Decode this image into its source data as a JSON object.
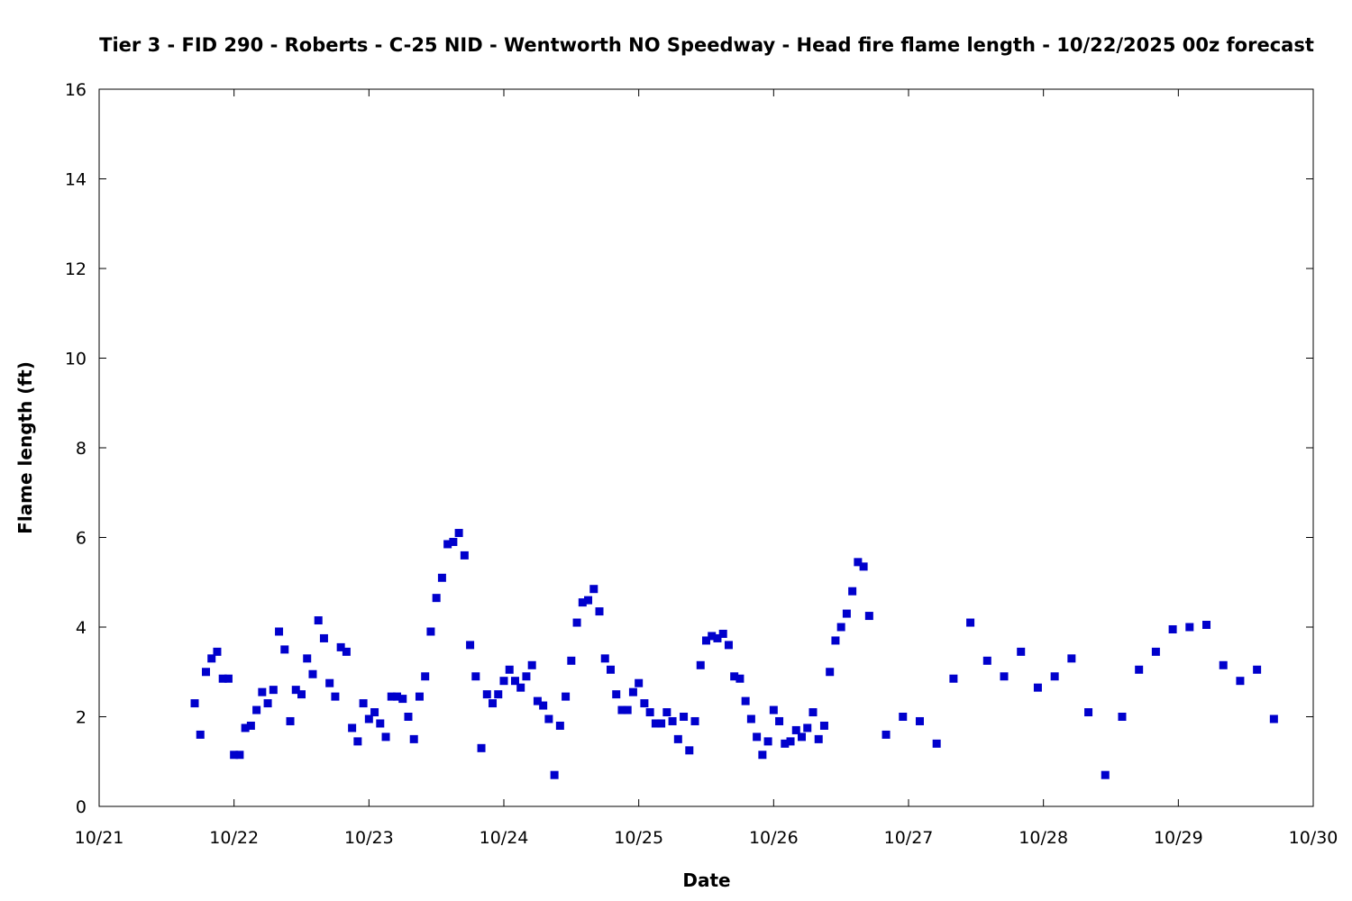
{
  "chart_data": {
    "type": "scatter",
    "title": "Tier 3 - FID 290 - Roberts - C-25 NID - Wentworth NO Speedway - Head fire flame length - 10/22/2025 00z forecast",
    "xlabel": "Date",
    "ylabel": "Flame length (ft)",
    "x_tick_labels": [
      "10/21",
      "10/22",
      "10/23",
      "10/24",
      "10/25",
      "10/26",
      "10/27",
      "10/28",
      "10/29",
      "10/30"
    ],
    "y_ticks": [
      0,
      2,
      4,
      6,
      8,
      10,
      12,
      14,
      16
    ],
    "xlim": [
      "2025-10-21 00:00",
      "2025-10-30 00:00"
    ],
    "ylim": [
      0,
      16
    ],
    "grid": false,
    "marker_color": "#0000cc",
    "series": [
      {
        "points": [
          [
            "2025-10-21 17:00",
            2.3
          ],
          [
            "2025-10-21 18:00",
            1.6
          ],
          [
            "2025-10-21 19:00",
            3.0
          ],
          [
            "2025-10-21 20:00",
            3.3
          ],
          [
            "2025-10-21 21:00",
            3.45
          ],
          [
            "2025-10-21 22:00",
            2.85
          ],
          [
            "2025-10-21 23:00",
            2.85
          ],
          [
            "2025-10-22 00:00",
            1.15
          ],
          [
            "2025-10-22 01:00",
            1.15
          ],
          [
            "2025-10-22 02:00",
            1.75
          ],
          [
            "2025-10-22 03:00",
            1.8
          ],
          [
            "2025-10-22 04:00",
            2.15
          ],
          [
            "2025-10-22 05:00",
            2.55
          ],
          [
            "2025-10-22 06:00",
            2.3
          ],
          [
            "2025-10-22 07:00",
            2.6
          ],
          [
            "2025-10-22 08:00",
            3.9
          ],
          [
            "2025-10-22 09:00",
            3.5
          ],
          [
            "2025-10-22 10:00",
            1.9
          ],
          [
            "2025-10-22 11:00",
            2.6
          ],
          [
            "2025-10-22 12:00",
            2.5
          ],
          [
            "2025-10-22 13:00",
            3.3
          ],
          [
            "2025-10-22 14:00",
            2.95
          ],
          [
            "2025-10-22 15:00",
            4.15
          ],
          [
            "2025-10-22 16:00",
            3.75
          ],
          [
            "2025-10-22 17:00",
            2.75
          ],
          [
            "2025-10-22 18:00",
            2.45
          ],
          [
            "2025-10-22 19:00",
            3.55
          ],
          [
            "2025-10-22 20:00",
            3.45
          ],
          [
            "2025-10-22 21:00",
            1.75
          ],
          [
            "2025-10-22 22:00",
            1.45
          ],
          [
            "2025-10-22 23:00",
            2.3
          ],
          [
            "2025-10-23 00:00",
            1.95
          ],
          [
            "2025-10-23 01:00",
            2.1
          ],
          [
            "2025-10-23 02:00",
            1.85
          ],
          [
            "2025-10-23 03:00",
            1.55
          ],
          [
            "2025-10-23 04:00",
            2.45
          ],
          [
            "2025-10-23 05:00",
            2.45
          ],
          [
            "2025-10-23 06:00",
            2.4
          ],
          [
            "2025-10-23 07:00",
            2.0
          ],
          [
            "2025-10-23 08:00",
            1.5
          ],
          [
            "2025-10-23 09:00",
            2.45
          ],
          [
            "2025-10-23 10:00",
            2.9
          ],
          [
            "2025-10-23 11:00",
            3.9
          ],
          [
            "2025-10-23 12:00",
            4.65
          ],
          [
            "2025-10-23 13:00",
            5.1
          ],
          [
            "2025-10-23 14:00",
            5.85
          ],
          [
            "2025-10-23 15:00",
            5.9
          ],
          [
            "2025-10-23 16:00",
            6.1
          ],
          [
            "2025-10-23 17:00",
            5.6
          ],
          [
            "2025-10-23 18:00",
            3.6
          ],
          [
            "2025-10-23 19:00",
            2.9
          ],
          [
            "2025-10-23 20:00",
            1.3
          ],
          [
            "2025-10-23 21:00",
            2.5
          ],
          [
            "2025-10-23 22:00",
            2.3
          ],
          [
            "2025-10-23 23:00",
            2.5
          ],
          [
            "2025-10-24 00:00",
            2.8
          ],
          [
            "2025-10-24 01:00",
            3.05
          ],
          [
            "2025-10-24 02:00",
            2.8
          ],
          [
            "2025-10-24 03:00",
            2.65
          ],
          [
            "2025-10-24 04:00",
            2.9
          ],
          [
            "2025-10-24 05:00",
            3.15
          ],
          [
            "2025-10-24 06:00",
            2.35
          ],
          [
            "2025-10-24 07:00",
            2.25
          ],
          [
            "2025-10-24 08:00",
            1.95
          ],
          [
            "2025-10-24 09:00",
            0.7
          ],
          [
            "2025-10-24 10:00",
            1.8
          ],
          [
            "2025-10-24 11:00",
            2.45
          ],
          [
            "2025-10-24 12:00",
            3.25
          ],
          [
            "2025-10-24 13:00",
            4.1
          ],
          [
            "2025-10-24 14:00",
            4.55
          ],
          [
            "2025-10-24 15:00",
            4.6
          ],
          [
            "2025-10-24 16:00",
            4.85
          ],
          [
            "2025-10-24 17:00",
            4.35
          ],
          [
            "2025-10-24 18:00",
            3.3
          ],
          [
            "2025-10-24 19:00",
            3.05
          ],
          [
            "2025-10-24 20:00",
            2.5
          ],
          [
            "2025-10-24 21:00",
            2.15
          ],
          [
            "2025-10-24 22:00",
            2.15
          ],
          [
            "2025-10-24 23:00",
            2.55
          ],
          [
            "2025-10-25 00:00",
            2.75
          ],
          [
            "2025-10-25 01:00",
            2.3
          ],
          [
            "2025-10-25 02:00",
            2.1
          ],
          [
            "2025-10-25 03:00",
            1.85
          ],
          [
            "2025-10-25 04:00",
            1.85
          ],
          [
            "2025-10-25 05:00",
            2.1
          ],
          [
            "2025-10-25 06:00",
            1.9
          ],
          [
            "2025-10-25 07:00",
            1.5
          ],
          [
            "2025-10-25 08:00",
            2.0
          ],
          [
            "2025-10-25 09:00",
            1.25
          ],
          [
            "2025-10-25 10:00",
            1.9
          ],
          [
            "2025-10-25 11:00",
            3.15
          ],
          [
            "2025-10-25 12:00",
            3.7
          ],
          [
            "2025-10-25 13:00",
            3.8
          ],
          [
            "2025-10-25 14:00",
            3.75
          ],
          [
            "2025-10-25 15:00",
            3.85
          ],
          [
            "2025-10-25 16:00",
            3.6
          ],
          [
            "2025-10-25 17:00",
            2.9
          ],
          [
            "2025-10-25 18:00",
            2.85
          ],
          [
            "2025-10-25 19:00",
            2.35
          ],
          [
            "2025-10-25 20:00",
            1.95
          ],
          [
            "2025-10-25 21:00",
            1.55
          ],
          [
            "2025-10-25 22:00",
            1.15
          ],
          [
            "2025-10-25 23:00",
            1.45
          ],
          [
            "2025-10-26 00:00",
            2.15
          ],
          [
            "2025-10-26 01:00",
            1.9
          ],
          [
            "2025-10-26 02:00",
            1.4
          ],
          [
            "2025-10-26 03:00",
            1.45
          ],
          [
            "2025-10-26 04:00",
            1.7
          ],
          [
            "2025-10-26 05:00",
            1.55
          ],
          [
            "2025-10-26 06:00",
            1.75
          ],
          [
            "2025-10-26 07:00",
            2.1
          ],
          [
            "2025-10-26 08:00",
            1.5
          ],
          [
            "2025-10-26 09:00",
            1.8
          ],
          [
            "2025-10-26 10:00",
            3.0
          ],
          [
            "2025-10-26 11:00",
            3.7
          ],
          [
            "2025-10-26 12:00",
            4.0
          ],
          [
            "2025-10-26 13:00",
            4.3
          ],
          [
            "2025-10-26 14:00",
            4.8
          ],
          [
            "2025-10-26 15:00",
            5.45
          ],
          [
            "2025-10-26 16:00",
            5.35
          ],
          [
            "2025-10-26 17:00",
            4.25
          ],
          [
            "2025-10-26 20:00",
            1.6
          ],
          [
            "2025-10-26 23:00",
            2.0
          ],
          [
            "2025-10-27 02:00",
            1.9
          ],
          [
            "2025-10-27 05:00",
            1.4
          ],
          [
            "2025-10-27 08:00",
            2.85
          ],
          [
            "2025-10-27 11:00",
            4.1
          ],
          [
            "2025-10-27 14:00",
            3.25
          ],
          [
            "2025-10-27 17:00",
            2.9
          ],
          [
            "2025-10-27 20:00",
            3.45
          ],
          [
            "2025-10-27 23:00",
            2.65
          ],
          [
            "2025-10-28 02:00",
            2.9
          ],
          [
            "2025-10-28 05:00",
            3.3
          ],
          [
            "2025-10-28 08:00",
            2.1
          ],
          [
            "2025-10-28 11:00",
            0.7
          ],
          [
            "2025-10-28 14:00",
            2.0
          ],
          [
            "2025-10-28 17:00",
            3.05
          ],
          [
            "2025-10-28 20:00",
            3.45
          ],
          [
            "2025-10-28 23:00",
            3.95
          ],
          [
            "2025-10-29 02:00",
            4.0
          ],
          [
            "2025-10-29 05:00",
            4.05
          ],
          [
            "2025-10-29 08:00",
            3.15
          ],
          [
            "2025-10-29 11:00",
            2.8
          ],
          [
            "2025-10-29 14:00",
            3.05
          ],
          [
            "2025-10-29 17:00",
            1.95
          ]
        ]
      }
    ]
  }
}
